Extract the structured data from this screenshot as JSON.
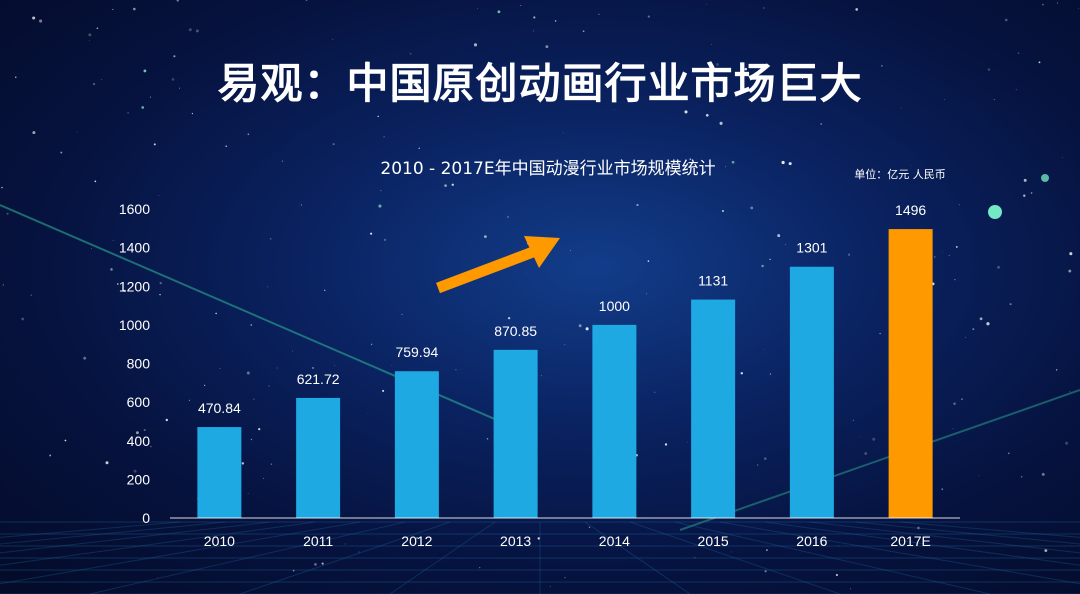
{
  "title": "易观：中国原创动画行业市场巨大",
  "colors": {
    "bar": "#1ea9e3",
    "highlight_bar": "#ff9900",
    "arrow": "#ff9900",
    "text": "#ffffff"
  },
  "chart_data": {
    "type": "bar",
    "title": "2010 - 2017E年中国动漫行业市场规模统计",
    "unit_label": "单位：亿元 人民币",
    "categories": [
      "2010",
      "2011",
      "2012",
      "2013",
      "2014",
      "2015",
      "2016",
      "2017E"
    ],
    "values": [
      470.84,
      621.72,
      759.94,
      870.85,
      1000,
      1131,
      1301,
      1496
    ],
    "value_labels": [
      "470.84",
      "621.72",
      "759.94",
      "870.85",
      "1000",
      "1131",
      "1301",
      "1496"
    ],
    "highlight_index": 7,
    "ylim": [
      0,
      1600
    ],
    "yticks": [
      0,
      200,
      400,
      600,
      800,
      1000,
      1200,
      1400,
      1600
    ],
    "grid": false,
    "annotation": "upward-arrow"
  }
}
